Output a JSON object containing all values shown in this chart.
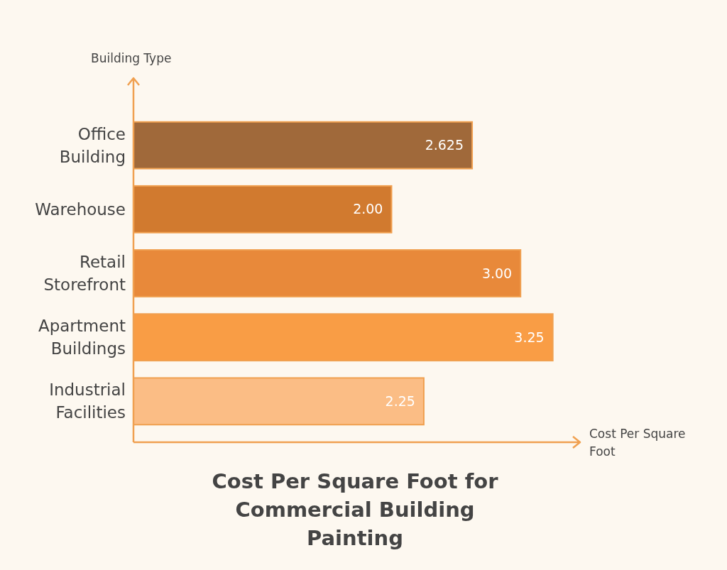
{
  "chart_data": {
    "type": "bar",
    "orientation": "horizontal",
    "title": "Cost Per Square Foot for Commercial Building Painting",
    "xlabel": "Cost Per Square Foot",
    "ylabel": "Building Type",
    "categories": [
      "Office Building",
      "Warehouse",
      "Retail Storefront",
      "Apartment Buildings",
      "Industrial Facilities"
    ],
    "values": [
      2.625,
      2.0,
      3.0,
      3.25,
      2.25
    ],
    "value_labels": [
      "2.625",
      "2.00",
      "3.00",
      "3.25",
      "2.25"
    ],
    "colors": [
      "#a0693a",
      "#d17a2f",
      "#e8893a",
      "#f99d45",
      "#fbbd85"
    ],
    "xlim": [
      0,
      3.45
    ]
  }
}
